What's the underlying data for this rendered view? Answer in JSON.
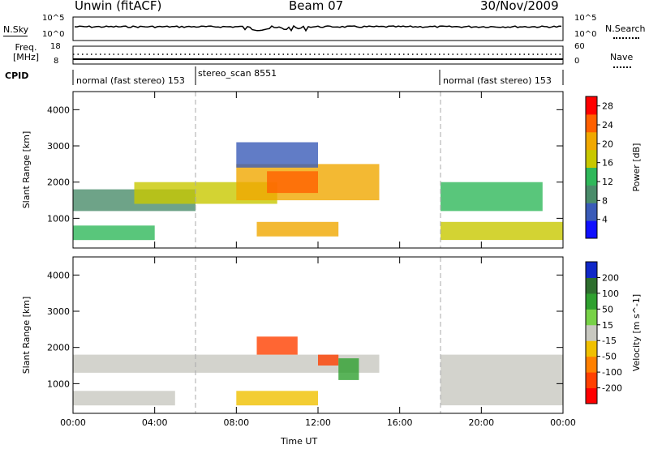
{
  "header": {
    "station": "Unwin (fitACF)",
    "beam": "Beam 07",
    "date": "30/Nov/2009"
  },
  "top_panels": {
    "nsky_label": "N.Sky",
    "nsearch_label": "N.Search",
    "nsky_ticks": [
      "10^5",
      "10^0"
    ],
    "nsearch_ticks": [
      "10^5",
      "10^0"
    ],
    "freq_label": "Freq. [MHz]",
    "freq_ticks": [
      "18",
      "8"
    ],
    "nave_label": "Nave",
    "nave_ticks": [
      "60",
      "0"
    ],
    "cpid_label": "CPID",
    "cpid_segments": [
      {
        "label": "normal (fast stereo) 153",
        "start_hour": 0
      },
      {
        "label": "stereo_scan 8551",
        "start_hour": 6
      },
      {
        "label": "normal (fast stereo) 153",
        "start_hour": 18
      }
    ]
  },
  "chart_data": [
    {
      "type": "heatmap",
      "title": "",
      "parameter": "Power",
      "xlabel": "Time UT",
      "ylabel": "Slant Range [km]",
      "xlim": [
        0,
        24
      ],
      "ylim": [
        180,
        4500
      ],
      "x_ticks": [
        "00:00",
        "04:00",
        "08:00",
        "12:00",
        "16:00",
        "20:00",
        "00:00"
      ],
      "y_ticks": [
        1000,
        2000,
        3000,
        4000
      ],
      "colorbar": {
        "label": "Power [dB]",
        "ticks": [
          4,
          8,
          12,
          16,
          20,
          24,
          28
        ],
        "range": [
          0,
          30
        ],
        "colors": [
          "#1010ff",
          "#3a5bb8",
          "#4a8c6a",
          "#2fb85a",
          "#c8c800",
          "#f0a800",
          "#ff6000",
          "#ff0000"
        ]
      },
      "mode_change_hours": [
        6,
        18
      ],
      "echo_regions": [
        {
          "t_start": 0,
          "t_end": 6,
          "range_start": 1200,
          "range_end": 1800,
          "power_db": 10
        },
        {
          "t_start": 0,
          "t_end": 4,
          "range_start": 400,
          "range_end": 800,
          "power_db": 14
        },
        {
          "t_start": 3,
          "t_end": 10,
          "range_start": 1400,
          "range_end": 2000,
          "power_db": 16
        },
        {
          "t_start": 8,
          "t_end": 15,
          "range_start": 1500,
          "range_end": 2500,
          "power_db": 20
        },
        {
          "t_start": 9.5,
          "t_end": 12,
          "range_start": 1700,
          "range_end": 2300,
          "power_db": 26
        },
        {
          "t_start": 9,
          "t_end": 13,
          "range_start": 500,
          "range_end": 900,
          "power_db": 22
        },
        {
          "t_start": 8,
          "t_end": 12,
          "range_start": 2400,
          "range_end": 3100,
          "power_db": 6
        },
        {
          "t_start": 18,
          "t_end": 23,
          "range_start": 1200,
          "range_end": 2000,
          "power_db": 14
        },
        {
          "t_start": 18,
          "t_end": 24,
          "range_start": 400,
          "range_end": 900,
          "power_db": 18
        }
      ]
    },
    {
      "type": "heatmap",
      "title": "",
      "parameter": "Velocity",
      "xlabel": "Time UT",
      "ylabel": "Slant Range [km]",
      "xlim": [
        0,
        24
      ],
      "ylim": [
        180,
        4500
      ],
      "x_ticks": [
        "00:00",
        "04:00",
        "08:00",
        "12:00",
        "16:00",
        "20:00",
        "00:00"
      ],
      "y_ticks": [
        1000,
        2000,
        3000,
        4000
      ],
      "colorbar": {
        "label": "Velocity [m s^-1]",
        "ticks": [
          200,
          100,
          50,
          15,
          -15,
          -50,
          -100,
          -200
        ],
        "colors": [
          "#1028c8",
          "#2e6e2e",
          "#2fa02f",
          "#78d248",
          "#c8c8c0",
          "#f0c000",
          "#ff8000",
          "#ff4000",
          "#ff0000"
        ]
      },
      "mode_change_hours": [
        6,
        18
      ],
      "echo_regions": [
        {
          "t_start": 0,
          "t_end": 15,
          "range_start": 1300,
          "range_end": 1800,
          "velocity": 0
        },
        {
          "t_start": 0,
          "t_end": 5,
          "range_start": 400,
          "range_end": 800,
          "velocity": 0
        },
        {
          "t_start": 9,
          "t_end": 11,
          "range_start": 1800,
          "range_end": 2300,
          "velocity": -200
        },
        {
          "t_start": 12,
          "t_end": 13,
          "range_start": 1500,
          "range_end": 1800,
          "velocity": -200
        },
        {
          "t_start": 13,
          "t_end": 14,
          "range_start": 1100,
          "range_end": 1700,
          "velocity": 50
        },
        {
          "t_start": 8,
          "t_end": 12,
          "range_start": 400,
          "range_end": 800,
          "velocity": -50
        },
        {
          "t_start": 18,
          "t_end": 24,
          "range_start": 400,
          "range_end": 1800,
          "velocity": 0
        }
      ]
    }
  ]
}
